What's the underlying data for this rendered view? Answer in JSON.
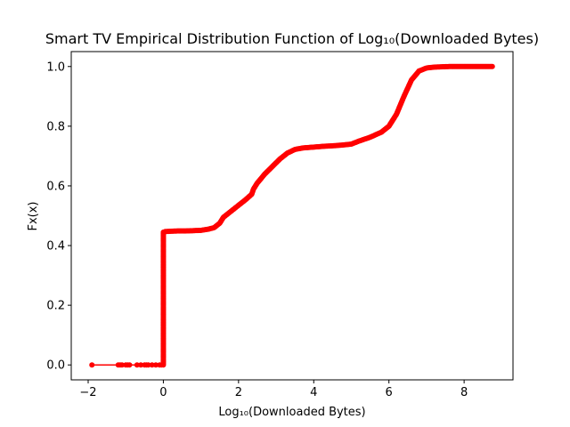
{
  "chart_data": {
    "type": "line",
    "title": "Smart TV Empirical Distribution Function of Log₁₀(Downloaded Bytes)",
    "xlabel": "Log₁₀(Downloaded Bytes)",
    "ylabel": "Fx(x)",
    "xlim": [
      -2.45,
      9.3
    ],
    "ylim": [
      -0.05,
      1.05
    ],
    "xticks": [
      -2,
      0,
      2,
      4,
      6,
      8
    ],
    "yticks": [
      0.0,
      0.2,
      0.4,
      0.6,
      0.8,
      1.0
    ],
    "xtick_labels": [
      "−2",
      "0",
      "2",
      "4",
      "6",
      "8"
    ],
    "ytick_labels": [
      "0.0",
      "0.2",
      "0.4",
      "0.6",
      "0.8",
      "1.0"
    ],
    "grid": false,
    "legend": "none",
    "series": [
      {
        "color": "#ff0000",
        "marker": "circle",
        "x": [
          -1.9,
          -1.2,
          -1.15,
          -1.1,
          -1.0,
          -0.95,
          -0.9,
          -0.7,
          -0.6,
          -0.5,
          -0.45,
          -0.4,
          -0.3,
          -0.2,
          -0.1,
          -0.05,
          0.0,
          0.0,
          0.05,
          0.2,
          0.4,
          0.6,
          0.8,
          1.0,
          1.2,
          1.35,
          1.5,
          1.6,
          1.8,
          2.0,
          2.2,
          2.35,
          2.4,
          2.5,
          2.7,
          2.9,
          3.1,
          3.3,
          3.5,
          3.7,
          4.0,
          4.3,
          4.6,
          5.0,
          5.2,
          5.5,
          5.8,
          6.0,
          6.2,
          6.4,
          6.6,
          6.8,
          7.0,
          7.2,
          7.4,
          7.6,
          7.8,
          8.0,
          8.2,
          8.4,
          8.6,
          8.75
        ],
        "y": [
          0.0,
          0.0,
          0.0,
          0.0,
          0.0,
          0.0,
          0.0,
          0.0,
          0.0,
          0.0,
          0.0,
          0.0,
          0.0,
          0.0,
          0.0,
          0.0,
          0.0,
          0.445,
          0.447,
          0.448,
          0.449,
          0.449,
          0.45,
          0.451,
          0.455,
          0.46,
          0.475,
          0.495,
          0.515,
          0.535,
          0.555,
          0.572,
          0.59,
          0.61,
          0.64,
          0.665,
          0.69,
          0.71,
          0.722,
          0.727,
          0.73,
          0.733,
          0.735,
          0.74,
          0.75,
          0.763,
          0.78,
          0.8,
          0.84,
          0.9,
          0.955,
          0.985,
          0.995,
          0.998,
          0.999,
          1.0,
          1.0,
          1.0,
          1.0,
          1.0,
          1.0,
          1.0
        ]
      }
    ]
  }
}
